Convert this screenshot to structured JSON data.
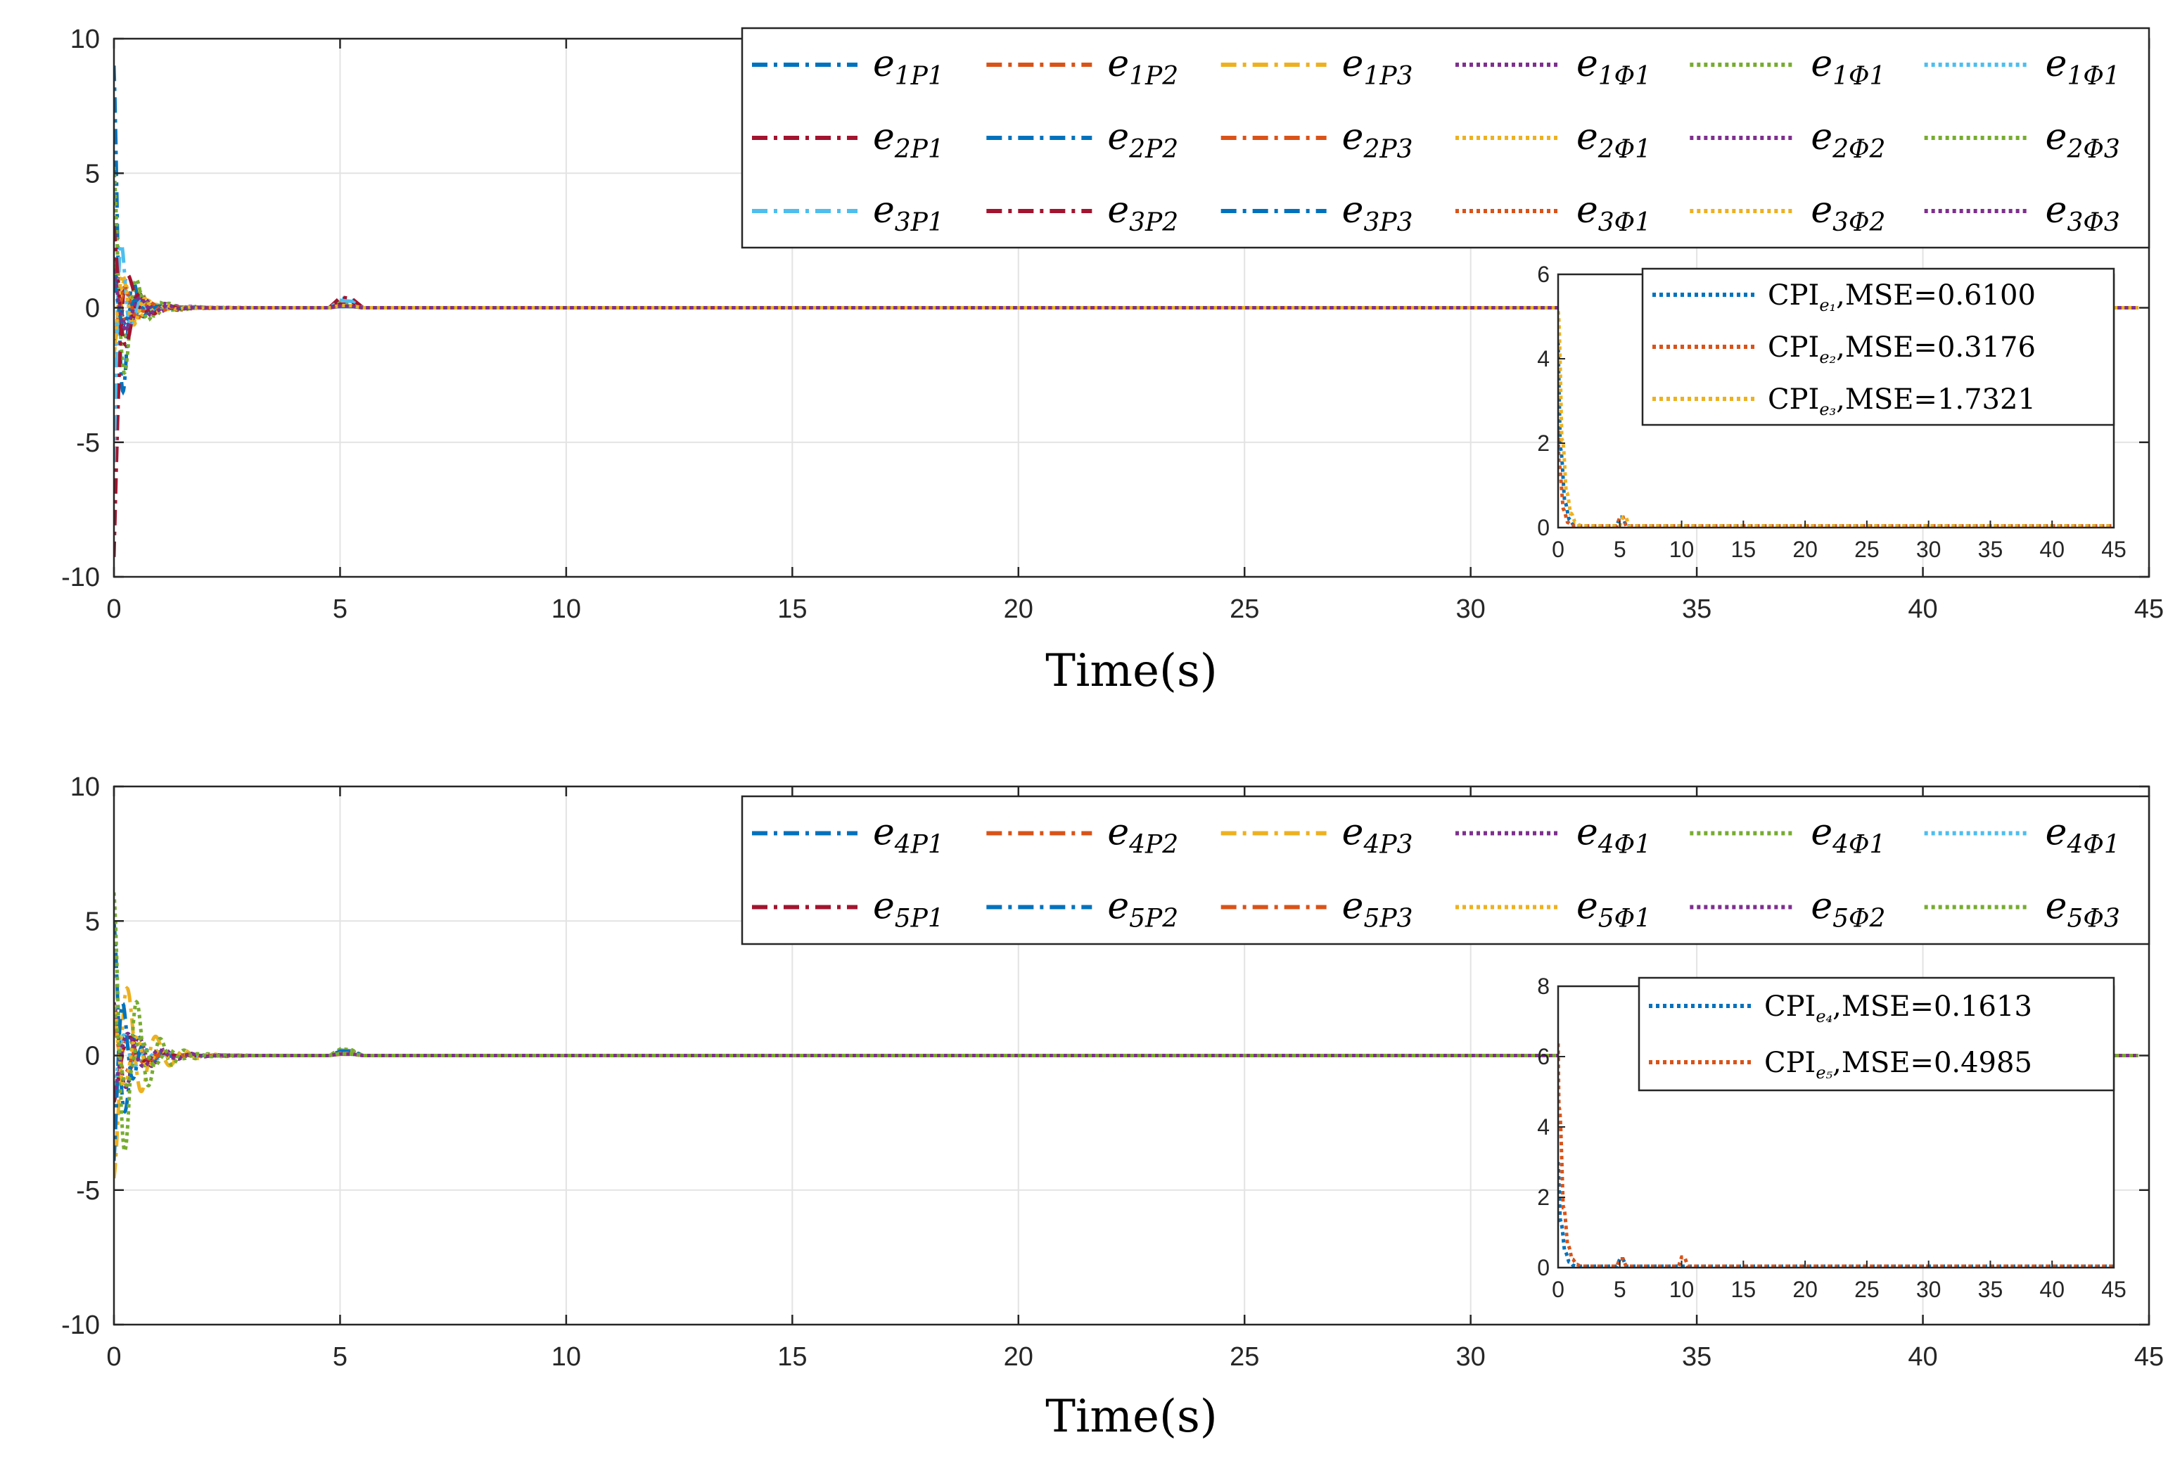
{
  "chart_data": [
    {
      "type": "line",
      "title": "",
      "xlabel": "Time(s)",
      "ylabel": "",
      "xlim": [
        0,
        45
      ],
      "ylim": [
        -10,
        10
      ],
      "xticks": [
        0,
        5,
        10,
        15,
        20,
        25,
        30,
        35,
        40,
        45
      ],
      "yticks": [
        -10,
        -5,
        0,
        5,
        10
      ],
      "grid": true,
      "legend_position": "top-right",
      "series": [
        {
          "name": "e1P1",
          "base": "e",
          "sub": "1P1",
          "color": "#0072BD",
          "style": "dashdot",
          "amp": 9.0,
          "sign": 1,
          "freq": 14,
          "decay": 5.0
        },
        {
          "name": "e1P2",
          "base": "e",
          "sub": "1P2",
          "color": "#D95319",
          "style": "dashdot",
          "amp": 1.6,
          "sign": 1,
          "freq": 9,
          "decay": 2.8
        },
        {
          "name": "e1P3",
          "base": "e",
          "sub": "1P3",
          "color": "#EDB120",
          "style": "dashdot",
          "amp": 1.4,
          "sign": -1,
          "freq": 10,
          "decay": 2.6
        },
        {
          "name": "e1Φ1",
          "base": "e",
          "sub": "1Φ1",
          "color": "#7E2F8E",
          "style": "dotted",
          "amp": 1.9,
          "sign": 1,
          "freq": 11,
          "decay": 2.2
        },
        {
          "name": "e1Φ1",
          "base": "e",
          "sub": "1Φ1",
          "color": "#77AC30",
          "style": "dotted",
          "amp": 5.4,
          "sign": 1,
          "freq": 12,
          "decay": 3.2
        },
        {
          "name": "e1Φ1",
          "base": "e",
          "sub": "1Φ1",
          "color": "#4DBEEE",
          "style": "dotted",
          "amp": 1.2,
          "sign": -1,
          "freq": 13,
          "decay": 3.0
        },
        {
          "name": "e2P1",
          "base": "e",
          "sub": "2P1",
          "color": "#A2142F",
          "style": "dashdot",
          "amp": 10.0,
          "sign": -1,
          "freq": 8,
          "decay": 6.0
        },
        {
          "name": "e2P2",
          "base": "e",
          "sub": "2P2",
          "color": "#0072BD",
          "style": "dashdot",
          "amp": 1.5,
          "sign": 1,
          "freq": 10,
          "decay": 2.8
        },
        {
          "name": "e2P3",
          "base": "e",
          "sub": "2P3",
          "color": "#D95319",
          "style": "dashdot",
          "amp": 1.3,
          "sign": -1,
          "freq": 11,
          "decay": 2.8
        },
        {
          "name": "e2Φ1",
          "base": "e",
          "sub": "2Φ1",
          "color": "#EDB120",
          "style": "dotted",
          "amp": 1.8,
          "sign": -1,
          "freq": 12,
          "decay": 2.4
        },
        {
          "name": "e2Φ2",
          "base": "e",
          "sub": "2Φ2",
          "color": "#7E2F8E",
          "style": "dotted",
          "amp": 1.7,
          "sign": 1,
          "freq": 9,
          "decay": 2.3
        },
        {
          "name": "e2Φ3",
          "base": "e",
          "sub": "2Φ3",
          "color": "#77AC30",
          "style": "dotted",
          "amp": 2.0,
          "sign": 1,
          "freq": 10,
          "decay": 2.0
        },
        {
          "name": "e3P1",
          "base": "e",
          "sub": "3P1",
          "color": "#4DBEEE",
          "style": "dashdot",
          "amp": 7.0,
          "sign": -1,
          "freq": 15,
          "decay": 5.5
        },
        {
          "name": "e3P2",
          "base": "e",
          "sub": "3P2",
          "color": "#A2142F",
          "style": "dashdot",
          "amp": 3.4,
          "sign": 1,
          "freq": 10,
          "decay": 3.0
        },
        {
          "name": "e3P3",
          "base": "e",
          "sub": "3P3",
          "color": "#0072BD",
          "style": "dashdot",
          "amp": 1.3,
          "sign": 1,
          "freq": 12,
          "decay": 3.0
        },
        {
          "name": "e3Φ1",
          "base": "e",
          "sub": "3Φ1",
          "color": "#D95319",
          "style": "dotted",
          "amp": 1.5,
          "sign": -1,
          "freq": 11,
          "decay": 2.5
        },
        {
          "name": "e3Φ2",
          "base": "e",
          "sub": "3Φ2",
          "color": "#EDB120",
          "style": "dotted",
          "amp": 2.2,
          "sign": -1,
          "freq": 13,
          "decay": 2.6
        },
        {
          "name": "e3Φ3",
          "base": "e",
          "sub": "3Φ3",
          "color": "#7E2F8E",
          "style": "dotted",
          "amp": 1.6,
          "sign": 1,
          "freq": 10,
          "decay": 2.4
        }
      ],
      "inset": {
        "xlim": [
          0,
          45
        ],
        "ylim": [
          0,
          6
        ],
        "xticks": [
          0,
          5,
          10,
          15,
          20,
          25,
          30,
          35,
          40,
          45
        ],
        "yticks": [
          0,
          2,
          4,
          6
        ],
        "legend_position": "top-right",
        "series": [
          {
            "name": "CPIe1,MSE=0.6100",
            "label_pre": "CPI",
            "label_sub": "e₁",
            "label_post": ",MSE=0.6100",
            "color": "#0072BD",
            "peak": 4.4,
            "decay": 3.2
          },
          {
            "name": "CPIe2,MSE=0.3176",
            "label_pre": "CPI",
            "label_sub": "e₂",
            "label_post": ",MSE=0.3176",
            "color": "#D95319",
            "peak": 2.6,
            "decay": 3.6
          },
          {
            "name": "CPIe3,MSE=1.7321",
            "label_pre": "CPI",
            "label_sub": "e₃",
            "label_post": ",MSE=1.7321",
            "color": "#EDB120",
            "peak": 6.0,
            "decay": 2.6
          }
        ]
      }
    },
    {
      "type": "line",
      "title": "",
      "xlabel": "Time(s)",
      "ylabel": "",
      "xlim": [
        0,
        45
      ],
      "ylim": [
        -10,
        10
      ],
      "xticks": [
        0,
        5,
        10,
        15,
        20,
        25,
        30,
        35,
        40,
        45
      ],
      "yticks": [
        -10,
        -5,
        0,
        5,
        10
      ],
      "grid": true,
      "legend_position": "top-right",
      "series": [
        {
          "name": "e4P1",
          "base": "e",
          "sub": "4P1",
          "color": "#0072BD",
          "style": "dashdot",
          "amp": 5.0,
          "sign": 1,
          "freq": 12,
          "decay": 3.5
        },
        {
          "name": "e4P2",
          "base": "e",
          "sub": "4P2",
          "color": "#D95319",
          "style": "dashdot",
          "amp": 1.5,
          "sign": -1,
          "freq": 9,
          "decay": 2.6
        },
        {
          "name": "e4P3",
          "base": "e",
          "sub": "4P3",
          "color": "#EDB120",
          "style": "dashdot",
          "amp": 4.6,
          "sign": -1,
          "freq": 10,
          "decay": 2.0
        },
        {
          "name": "e4Φ1",
          "base": "e",
          "sub": "4Φ1",
          "color": "#7E2F8E",
          "style": "dotted",
          "amp": 2.0,
          "sign": 1,
          "freq": 11,
          "decay": 1.9
        },
        {
          "name": "e4Φ1",
          "base": "e",
          "sub": "4Φ1",
          "color": "#77AC30",
          "style": "dotted",
          "amp": 6.2,
          "sign": 1,
          "freq": 12,
          "decay": 2.2
        },
        {
          "name": "e4Φ1",
          "base": "e",
          "sub": "4Φ1",
          "color": "#4DBEEE",
          "style": "dotted",
          "amp": 1.4,
          "sign": -1,
          "freq": 13,
          "decay": 2.6
        },
        {
          "name": "e5P1",
          "base": "e",
          "sub": "5P1",
          "color": "#A2142F",
          "style": "dashdot",
          "amp": 1.8,
          "sign": -1,
          "freq": 8,
          "decay": 2.6
        },
        {
          "name": "e5P2",
          "base": "e",
          "sub": "5P2",
          "color": "#0072BD",
          "style": "dashdot",
          "amp": 4.2,
          "sign": -1,
          "freq": 14,
          "decay": 3.6
        },
        {
          "name": "e5P3",
          "base": "e",
          "sub": "5P3",
          "color": "#D95319",
          "style": "dashdot",
          "amp": 1.3,
          "sign": 1,
          "freq": 11,
          "decay": 2.6
        },
        {
          "name": "e5Φ1",
          "base": "e",
          "sub": "5Φ1",
          "color": "#EDB120",
          "style": "dotted",
          "amp": 2.0,
          "sign": 1,
          "freq": 12,
          "decay": 2.1
        },
        {
          "name": "e5Φ2",
          "base": "e",
          "sub": "5Φ2",
          "color": "#7E2F8E",
          "style": "dotted",
          "amp": 1.6,
          "sign": -1,
          "freq": 9,
          "decay": 2.0
        },
        {
          "name": "e5Φ3",
          "base": "e",
          "sub": "5Φ3",
          "color": "#77AC30",
          "style": "dotted",
          "amp": 1.9,
          "sign": 1,
          "freq": 10,
          "decay": 1.8
        }
      ],
      "inset": {
        "xlim": [
          0,
          45
        ],
        "ylim": [
          0,
          8
        ],
        "xticks": [
          0,
          5,
          10,
          15,
          20,
          25,
          30,
          35,
          40,
          45
        ],
        "yticks": [
          0,
          2,
          4,
          6,
          8
        ],
        "legend_position": "top-right",
        "series": [
          {
            "name": "CPIe4,MSE=0.1613",
            "label_pre": "CPI",
            "label_sub": "e₄",
            "label_post": ",MSE=0.1613",
            "color": "#0072BD",
            "peak": 3.0,
            "decay": 3.0
          },
          {
            "name": "CPIe5,MSE=0.4985",
            "label_pre": "CPI",
            "label_sub": "e₅",
            "label_post": ",MSE=0.4985",
            "color": "#D95319",
            "peak": 7.2,
            "decay": 2.8
          }
        ]
      }
    }
  ]
}
